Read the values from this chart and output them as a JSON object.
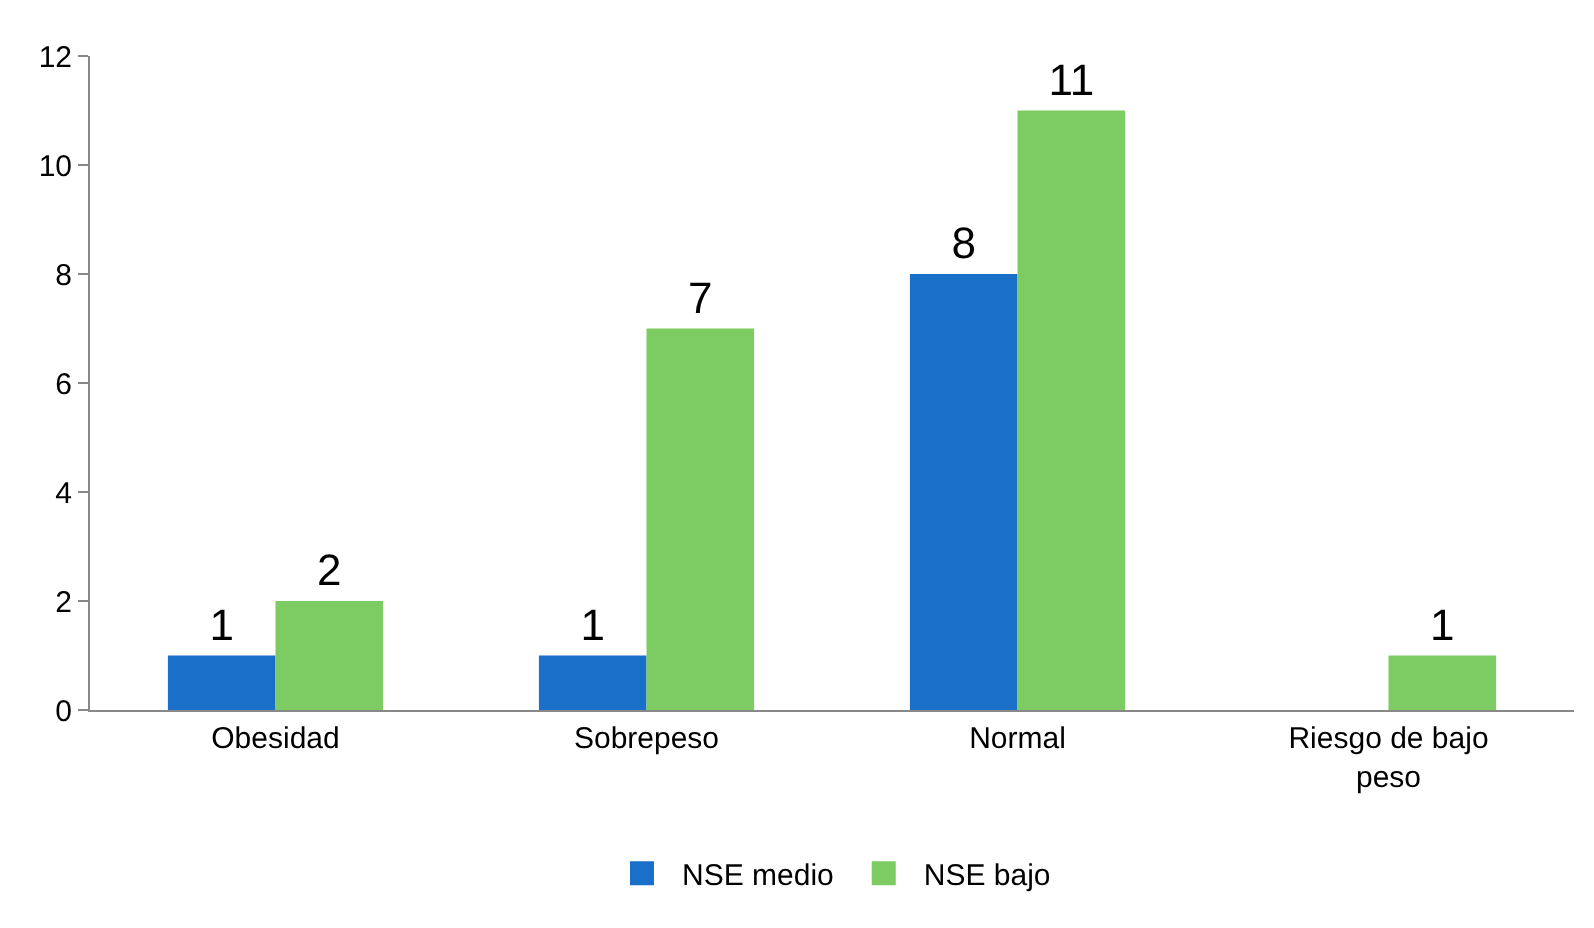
{
  "chart_data": {
    "type": "bar",
    "categories": [
      "Obesidad",
      "Sobrepeso",
      "Normal",
      "Riesgo de bajo peso"
    ],
    "series": [
      {
        "name": "NSE medio",
        "color": "#1a6fc9",
        "values": [
          1,
          1,
          8,
          null
        ]
      },
      {
        "name": "NSE bajo",
        "color": "#7dcc63",
        "values": [
          2,
          7,
          11,
          1
        ]
      }
    ],
    "ylim": [
      0,
      12
    ],
    "yticks": [
      0,
      2,
      4,
      6,
      8,
      10,
      12
    ],
    "data_labels": true,
    "grid": false,
    "legend": "bottom"
  }
}
